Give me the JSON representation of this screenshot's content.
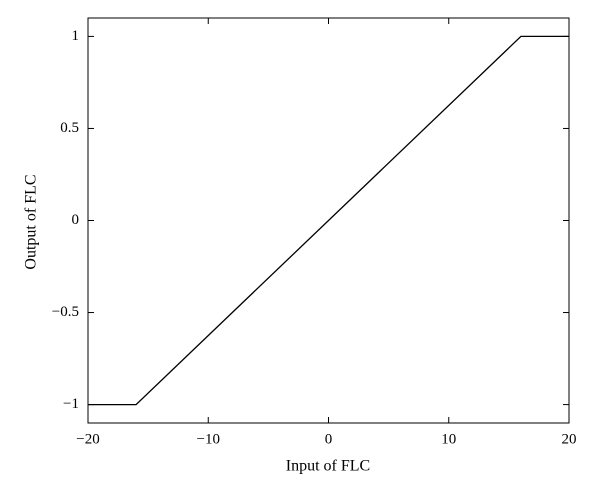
{
  "chart_data": {
    "type": "line",
    "x_label": "Input of FLC",
    "y_label": "Output of FLC",
    "x": [
      -20,
      -16,
      16,
      20
    ],
    "series": [
      {
        "color": "#000000",
        "values": [
          -1,
          -1,
          1,
          1
        ]
      }
    ],
    "xlim": [
      -20,
      20
    ],
    "xticks": [
      {
        "value": -20,
        "label": "−20"
      },
      {
        "value": -10,
        "label": "−10"
      },
      0,
      10,
      20
    ],
    "ylim": [
      -1.1,
      1.1
    ],
    "yticks": [
      {
        "value": -1,
        "label": "−1"
      },
      {
        "value": -0.5,
        "label": "−0.5"
      },
      0,
      0.5,
      1
    ],
    "grid": false
  }
}
